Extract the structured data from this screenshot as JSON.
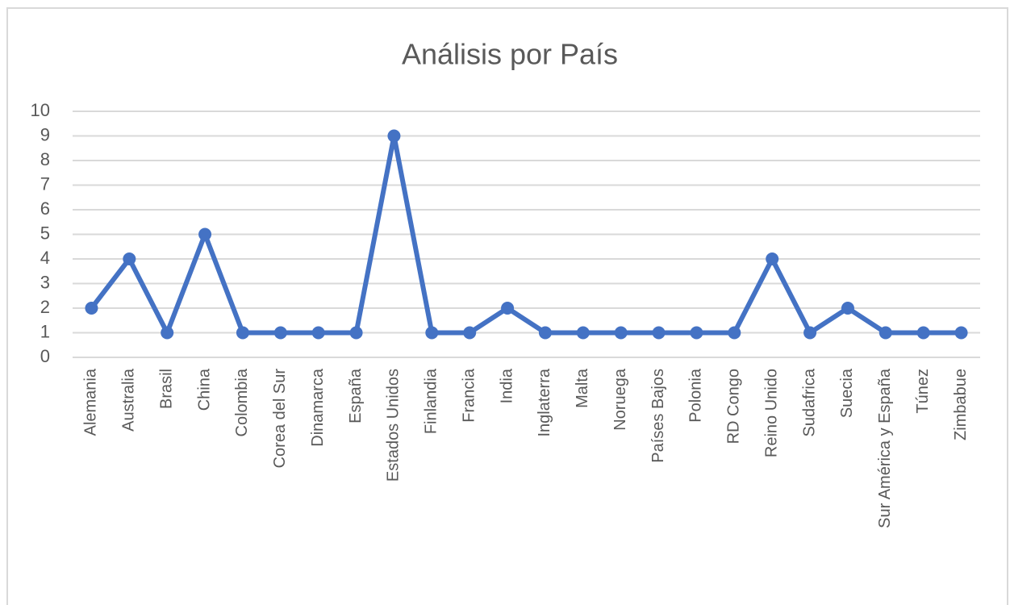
{
  "chart_data": {
    "type": "line",
    "title": "Análisis por País",
    "categories": [
      "Alemania",
      "Australia",
      "Brasil",
      "China",
      "Colombia",
      "Corea del Sur",
      "Dinamarca",
      "España",
      "Estados Unidos",
      "Finlandia",
      "Francia",
      "India",
      "Inglaterra",
      "Malta",
      "Noruega",
      "Países Bajos",
      "Polonia",
      "RD Congo",
      "Reino Unido",
      "Sudafrica",
      "Suecia",
      "Sur América y España",
      "Túnez",
      "Zimbabue"
    ],
    "values": [
      2,
      4,
      1,
      5,
      1,
      1,
      1,
      1,
      9,
      1,
      1,
      2,
      1,
      1,
      1,
      1,
      1,
      1,
      4,
      1,
      2,
      1,
      1,
      1
    ],
    "color": "#4472c4",
    "ylim": [
      0,
      10
    ],
    "yticks": [
      0,
      1,
      2,
      3,
      4,
      5,
      6,
      7,
      8,
      9,
      10
    ],
    "grid": true
  }
}
